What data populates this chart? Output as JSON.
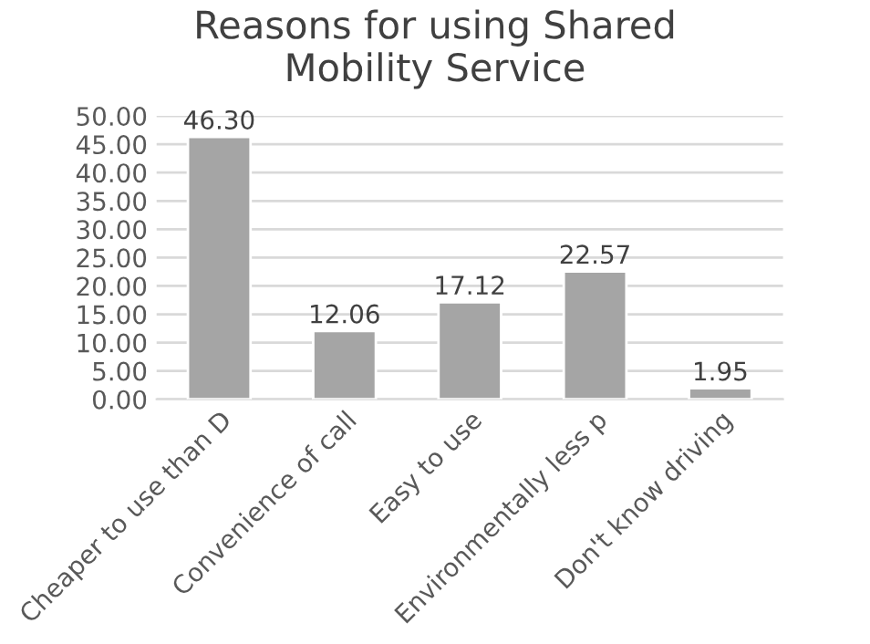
{
  "chart_data": {
    "type": "bar",
    "title": "Reasons for using Shared\nMobility Service",
    "categories": [
      "Cheaper to use than D",
      "Convenience of call",
      "Easy to use",
      "Environmentally less p",
      "Don't know driving"
    ],
    "values": [
      46.3,
      12.06,
      17.12,
      22.57,
      1.95
    ],
    "value_labels": [
      "46.30",
      "12.06",
      "17.12",
      "22.57",
      "1.95"
    ],
    "color": "#a5a5a5",
    "ylim": [
      0,
      50
    ],
    "yticks": [
      {
        "value": 0,
        "label": "0.00"
      },
      {
        "value": 5,
        "label": "5.00"
      },
      {
        "value": 10,
        "label": "10.00"
      },
      {
        "value": 15,
        "label": "15.00"
      },
      {
        "value": 20,
        "label": "20.00"
      },
      {
        "value": 25,
        "label": "25.00"
      },
      {
        "value": 30,
        "label": "30.00"
      },
      {
        "value": 35,
        "label": "35.00"
      },
      {
        "value": 40,
        "label": "40.00"
      },
      {
        "value": 45,
        "label": "45.00"
      },
      {
        "value": 50,
        "label": "50.00"
      }
    ],
    "grid": "y"
  }
}
